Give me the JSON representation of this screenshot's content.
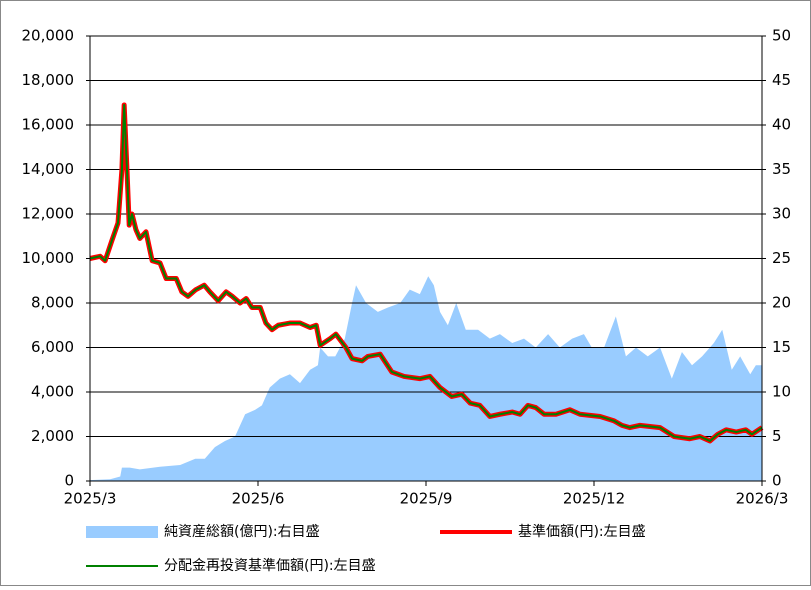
{
  "chart_data": {
    "type": "line",
    "xlim": [
      0,
      12
    ],
    "xticks": [
      {
        "value": 0,
        "label": "2025/3"
      },
      {
        "value": 3,
        "label": "2025/6"
      },
      {
        "value": 6,
        "label": "2025/9"
      },
      {
        "value": 9,
        "label": "2025/12"
      },
      {
        "value": 12,
        "label": "2026/3"
      }
    ],
    "ylim": [
      0,
      20000
    ],
    "yticks": [
      {
        "value": 0,
        "label": "0"
      },
      {
        "value": 2000,
        "label": "2,000"
      },
      {
        "value": 4000,
        "label": "4,000"
      },
      {
        "value": 6000,
        "label": "6,000"
      },
      {
        "value": 8000,
        "label": "8,000"
      },
      {
        "value": 10000,
        "label": "10,000"
      },
      {
        "value": 12000,
        "label": "12,000"
      },
      {
        "value": 14000,
        "label": "14,000"
      },
      {
        "value": 16000,
        "label": "16,000"
      },
      {
        "value": 18000,
        "label": "18,000"
      },
      {
        "value": 20000,
        "label": "20,000"
      }
    ],
    "y2lim": [
      0,
      50
    ],
    "y2ticks": [
      0,
      5,
      10,
      15,
      20,
      25,
      30,
      35,
      40,
      45,
      50
    ],
    "grid": true,
    "series": [
      {
        "name": "純資産総額(億円):右目盛",
        "type": "area",
        "axis": "y2",
        "color": "#99ccff",
        "x": [
          0,
          0.36,
          0.54,
          0.57,
          0.71,
          0.89,
          1.25,
          1.61,
          1.88,
          2.05,
          2.23,
          2.41,
          2.59,
          2.77,
          2.95,
          3.07,
          3.21,
          3.39,
          3.57,
          3.75,
          3.93,
          4.07,
          4.11,
          4.25,
          4.38,
          4.55,
          4.68,
          4.75,
          4.93,
          5.14,
          5.32,
          5.54,
          5.71,
          5.89,
          6.04,
          6.14,
          6.25,
          6.39,
          6.54,
          6.71,
          6.93,
          7.14,
          7.32,
          7.54,
          7.75,
          7.96,
          8.18,
          8.39,
          8.61,
          8.82,
          8.96,
          9.18,
          9.39,
          9.57,
          9.75,
          9.96,
          10.18,
          10.39,
          10.57,
          10.75,
          10.93,
          11.14,
          11.29,
          11.46,
          11.61,
          11.79,
          11.89,
          12
        ],
        "values": [
          0.1,
          0.2,
          0.5,
          1.5,
          1.5,
          1.3,
          1.6,
          1.8,
          2.5,
          2.5,
          3.8,
          4.5,
          5,
          7.5,
          8,
          8.5,
          10.5,
          11.5,
          12,
          11,
          12.5,
          13,
          15,
          14,
          14,
          16,
          20,
          22,
          20,
          19,
          19.5,
          20,
          21.5,
          21,
          23,
          22,
          19,
          17.5,
          20,
          17,
          17,
          16,
          16.5,
          15.5,
          16,
          15,
          16.5,
          15,
          16,
          16.5,
          15,
          15,
          18.5,
          14,
          15,
          14,
          15,
          11.5,
          14.5,
          13,
          14,
          15.5,
          17,
          12.5,
          14,
          12,
          13,
          13
        ]
      },
      {
        "name": "基準価額(円):左目盛",
        "type": "line",
        "color": "#ff0000",
        "x": [
          0,
          0.18,
          0.27,
          0.39,
          0.5,
          0.57,
          0.61,
          0.66,
          0.7,
          0.75,
          0.82,
          0.89,
          1.0,
          1.11,
          1.25,
          1.36,
          1.54,
          1.64,
          1.75,
          1.89,
          2.04,
          2.14,
          2.29,
          2.43,
          2.54,
          2.68,
          2.79,
          2.89,
          3.04,
          3.14,
          3.25,
          3.36,
          3.57,
          3.75,
          3.93,
          4.04,
          4.11,
          4.29,
          4.39,
          4.57,
          4.68,
          4.86,
          4.96,
          5.18,
          5.39,
          5.61,
          5.89,
          6.07,
          6.25,
          6.46,
          6.64,
          6.79,
          6.96,
          7.14,
          7.32,
          7.54,
          7.68,
          7.82,
          7.96,
          8.11,
          8.32,
          8.57,
          8.75,
          9.11,
          9.36,
          9.5,
          9.64,
          9.82,
          10.18,
          10.43,
          10.71,
          10.89,
          11.07,
          11.21,
          11.36,
          11.54,
          11.71,
          11.82,
          12
        ],
        "values": [
          10000,
          10100,
          9900,
          10800,
          11600,
          14000,
          16900,
          14000,
          11500,
          12000,
          11300,
          10900,
          11200,
          9900,
          9800,
          9100,
          9100,
          8500,
          8300,
          8600,
          8800,
          8500,
          8100,
          8500,
          8300,
          8000,
          8200,
          7800,
          7800,
          7100,
          6800,
          7000,
          7100,
          7100,
          6900,
          7000,
          6100,
          6400,
          6600,
          6000,
          5500,
          5400,
          5600,
          5700,
          4900,
          4700,
          4600,
          4700,
          4200,
          3800,
          3900,
          3500,
          3400,
          2900,
          3000,
          3100,
          3000,
          3400,
          3300,
          3000,
          3000,
          3200,
          3000,
          2900,
          2700,
          2500,
          2400,
          2500,
          2400,
          2000,
          1900,
          2000,
          1800,
          2100,
          2300,
          2200,
          2300,
          2100,
          2400
        ]
      },
      {
        "name": "分配金再投資基準価額(円):左目盛",
        "type": "line",
        "color": "#008000",
        "x": [
          0,
          0.18,
          0.27,
          0.39,
          0.5,
          0.57,
          0.61,
          0.66,
          0.7,
          0.75,
          0.82,
          0.89,
          1.0,
          1.11,
          1.25,
          1.36,
          1.54,
          1.64,
          1.75,
          1.89,
          2.04,
          2.14,
          2.29,
          2.43,
          2.54,
          2.68,
          2.79,
          2.89,
          3.04,
          3.14,
          3.25,
          3.36,
          3.57,
          3.75,
          3.93,
          4.04,
          4.11,
          4.29,
          4.39,
          4.57,
          4.68,
          4.86,
          4.96,
          5.18,
          5.39,
          5.61,
          5.89,
          6.07,
          6.25,
          6.46,
          6.64,
          6.79,
          6.96,
          7.14,
          7.32,
          7.54,
          7.68,
          7.82,
          7.96,
          8.11,
          8.32,
          8.57,
          8.75,
          9.11,
          9.36,
          9.5,
          9.64,
          9.82,
          10.18,
          10.43,
          10.71,
          10.89,
          11.07,
          11.21,
          11.36,
          11.54,
          11.71,
          11.82,
          12
        ],
        "values": [
          10000,
          10100,
          9900,
          10800,
          11600,
          14000,
          16900,
          14000,
          11500,
          12000,
          11300,
          10900,
          11200,
          9900,
          9800,
          9100,
          9100,
          8500,
          8300,
          8600,
          8800,
          8500,
          8100,
          8500,
          8300,
          8000,
          8200,
          7800,
          7800,
          7100,
          6800,
          7000,
          7100,
          7100,
          6900,
          7000,
          6100,
          6400,
          6600,
          6000,
          5500,
          5400,
          5600,
          5700,
          4900,
          4700,
          4600,
          4700,
          4200,
          3800,
          3900,
          3500,
          3400,
          2900,
          3000,
          3100,
          3000,
          3400,
          3300,
          3000,
          3000,
          3200,
          3000,
          2900,
          2700,
          2500,
          2400,
          2500,
          2400,
          2000,
          1900,
          2000,
          1800,
          2100,
          2300,
          2200,
          2300,
          2100,
          2400
        ]
      }
    ]
  }
}
